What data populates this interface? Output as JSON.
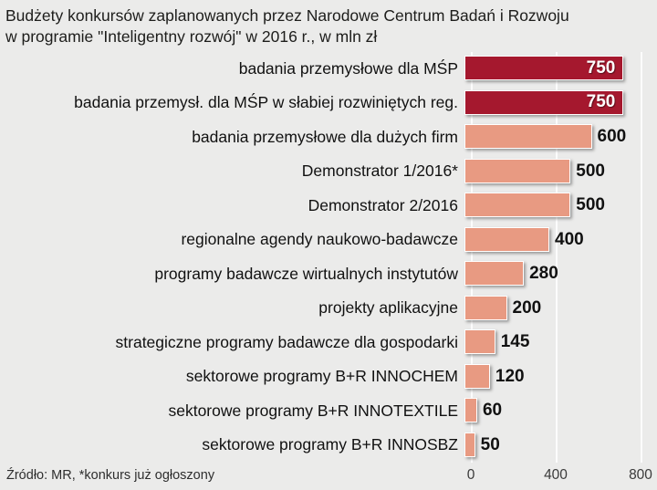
{
  "title": {
    "line1": "Budżety konkursów zaplanowanych przez Narodowe Centrum Badań i Rozwoju",
    "line2": "w programie \"Inteligentny rozwój\" w 2016 r., w mln zł"
  },
  "source": "Źródło: MR, *konkurs już ogłoszony",
  "colors": {
    "background": "#ebebea",
    "bar": "#e89a82",
    "highlight": "#a5182e",
    "gridline": "#ffffff",
    "value_text": "#111111",
    "value_text_inside": "#ffffff"
  },
  "chart_data": {
    "type": "bar",
    "orientation": "horizontal",
    "title": "Budżety konkursów zaplanowanych przez Narodowe Centrum Badań i Rozwoju w programie \"Inteligentny rozwój\" w 2016 r., w mln zł",
    "unit": "mln zł",
    "categories": [
      "badania przemysłowe dla MŚP",
      "badania przemysł. dla MŚP w słabiej rozwiniętych reg.",
      "badania przemysłowe dla dużych firm",
      "Demonstrator 1/2016*",
      "Demonstrator 2/2016",
      "regionalne agendy naukowo-badawcze",
      "programy badawcze wirtualnych instytutów",
      "projekty aplikacyjne",
      "strategiczne programy badawcze dla gospodarki",
      "sektorowe programy B+R INNOCHEM",
      "sektorowe programy B+R INNOTEXTILE",
      "sektorowe programy B+R INNOSBZ"
    ],
    "values": [
      750,
      750,
      600,
      500,
      500,
      400,
      280,
      200,
      145,
      120,
      60,
      50
    ],
    "highlight_indices": [
      0,
      1
    ],
    "xlim": [
      0,
      800
    ],
    "xticks": [
      0,
      400,
      800
    ],
    "legend": "none",
    "grid": "vertical",
    "source": "Źródło: MR, *konkurs już ogłoszony"
  }
}
